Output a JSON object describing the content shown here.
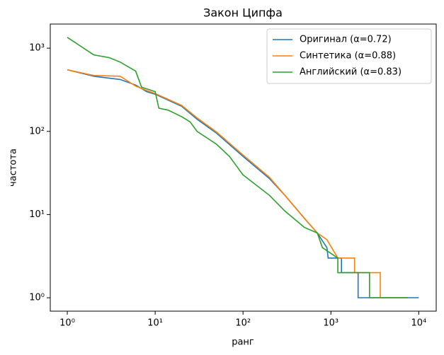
{
  "chart_data": {
    "type": "line",
    "title": "Закон Ципфа",
    "x_label": "ранг",
    "y_label": "частота",
    "log_x": true,
    "log_y": true,
    "legend": "upper right",
    "xlim": [
      0.64,
      15800
    ],
    "ylim": [
      0.69,
      1950
    ],
    "xticks": [
      {
        "value": 1,
        "label": "10⁰"
      },
      {
        "value": 10,
        "label": "10¹"
      },
      {
        "value": 100,
        "label": "10²"
      },
      {
        "value": 1000,
        "label": "10³"
      },
      {
        "value": 10000,
        "label": "10⁴"
      }
    ],
    "yticks": [
      {
        "value": 1,
        "label": "10⁰"
      },
      {
        "value": 10,
        "label": "10¹"
      },
      {
        "value": 100,
        "label": "10²"
      },
      {
        "value": 1000,
        "label": "10³"
      }
    ],
    "series": [
      {
        "name": "Оригинал (α=0.72)",
        "color": "#1f77b4",
        "x": [
          1,
          2,
          4,
          6,
          8,
          10,
          20,
          30,
          50,
          100,
          200,
          300,
          500,
          700,
          900,
          930,
          1320,
          1320,
          2040,
          2040,
          10000
        ],
        "values": [
          550,
          460,
          420,
          360,
          300,
          280,
          200,
          140,
          95,
          50,
          27,
          17,
          9,
          6,
          4,
          3,
          3,
          2,
          2,
          1,
          1
        ]
      },
      {
        "name": "Синтетика (α=0.88)",
        "color": "#ff7f0e",
        "x": [
          1,
          2,
          4,
          6,
          8,
          10,
          20,
          30,
          50,
          100,
          200,
          300,
          500,
          700,
          900,
          1200,
          1860,
          1860,
          3650,
          3650,
          7400
        ],
        "values": [
          550,
          470,
          460,
          350,
          310,
          285,
          205,
          145,
          98,
          52,
          28,
          17,
          9,
          6,
          5,
          3,
          3,
          2,
          2,
          1,
          1
        ]
      },
      {
        "name": "Английский (α=0.83)",
        "color": "#2ca02c",
        "x": [
          1,
          2,
          3,
          4,
          6,
          7,
          10,
          11,
          14,
          20,
          25,
          30,
          50,
          70,
          100,
          200,
          300,
          500,
          700,
          800,
          1200,
          1200,
          1780,
          1780,
          2750,
          2750,
          7500
        ],
        "values": [
          1350,
          830,
          770,
          680,
          530,
          340,
          300,
          190,
          180,
          150,
          130,
          100,
          70,
          50,
          30,
          17,
          11,
          7,
          6,
          4,
          3,
          2,
          2,
          2,
          2,
          1,
          1
        ]
      }
    ]
  }
}
